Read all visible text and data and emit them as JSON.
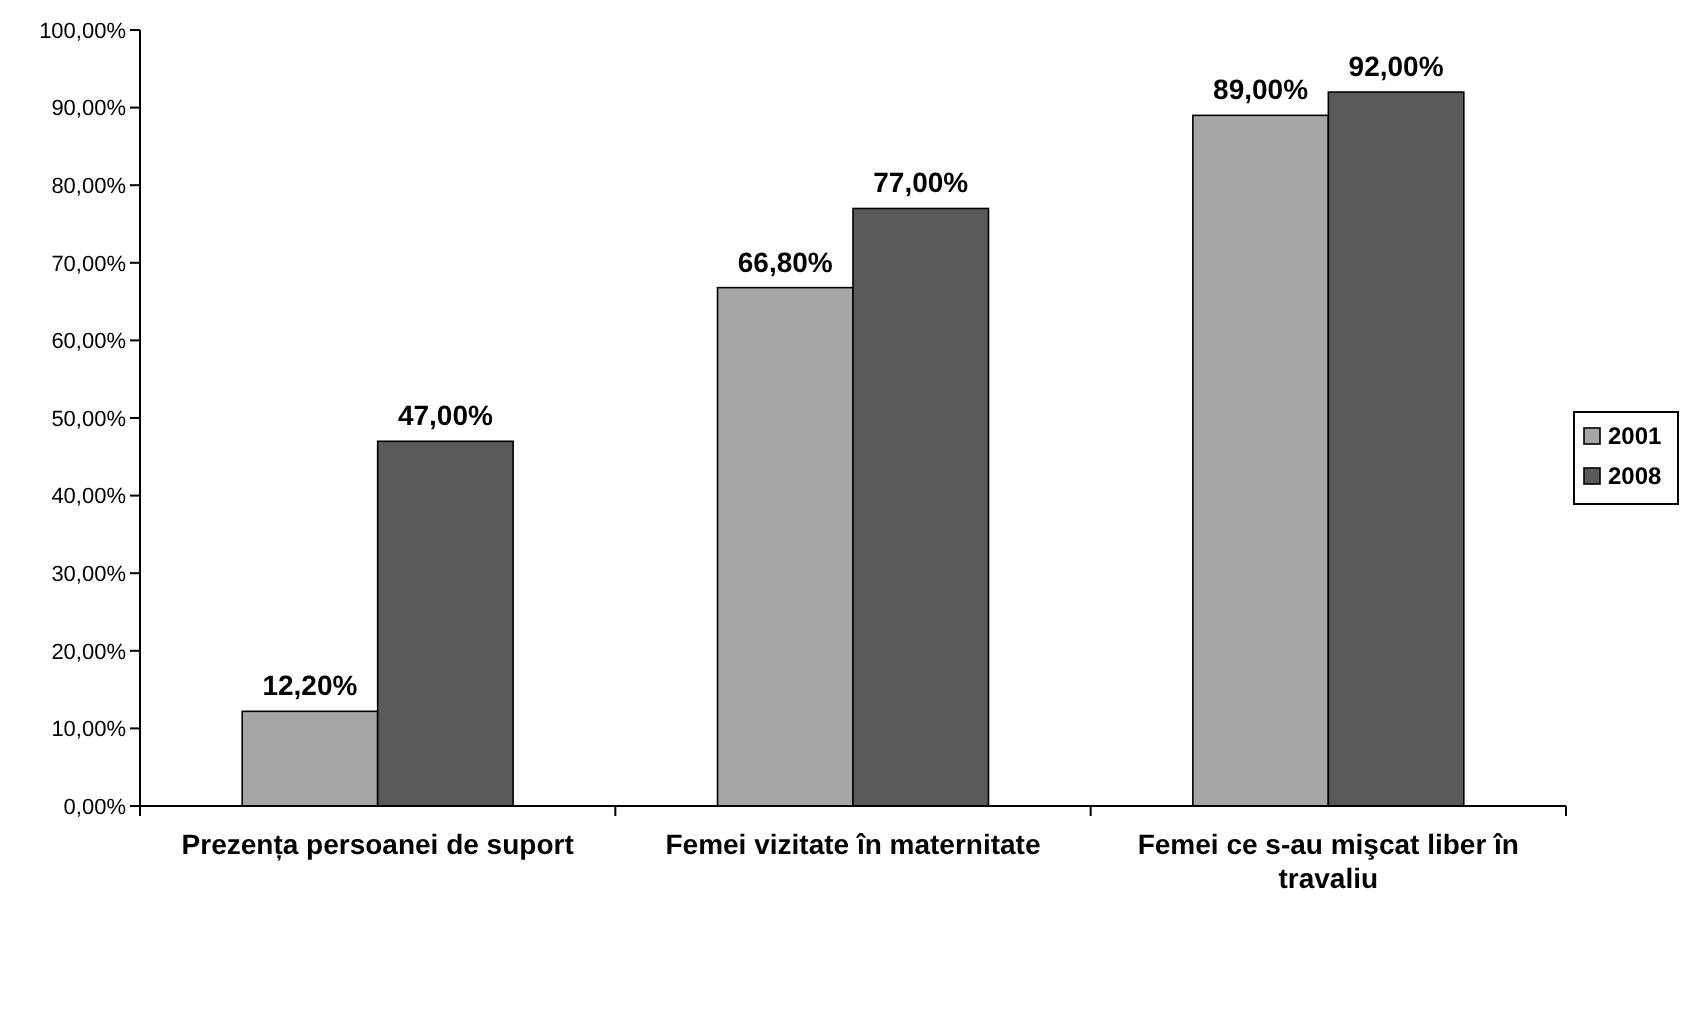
{
  "chart_data": {
    "type": "bar",
    "categories": [
      "Prezența persoanei de suport",
      "Femei vizitate în maternitate",
      "Femei ce s-au mişcat liber în travaliu"
    ],
    "series": [
      {
        "name": "2001",
        "color": "#a6a6a6",
        "values": [
          12.2,
          66.8,
          89
        ],
        "value_labels": [
          "12,20%",
          "66,80%",
          "89,00%"
        ]
      },
      {
        "name": "2008",
        "color": "#595959",
        "values": [
          47,
          77,
          92
        ],
        "value_labels": [
          "47,00%",
          "77,00%",
          "92,00%"
        ]
      }
    ],
    "ylim": [
      0,
      100
    ],
    "yticks": [
      {
        "value": 0,
        "label": "0,00%"
      },
      {
        "value": 10,
        "label": "10,00%"
      },
      {
        "value": 20,
        "label": "20,00%"
      },
      {
        "value": 30,
        "label": "30,00%"
      },
      {
        "value": 40,
        "label": "40,00%"
      },
      {
        "value": 50,
        "label": "50,00%"
      },
      {
        "value": 60,
        "label": "60,00%"
      },
      {
        "value": 70,
        "label": "70,00%"
      },
      {
        "value": 80,
        "label": "80,00%"
      },
      {
        "value": 90,
        "label": "90,00%"
      },
      {
        "value": 100,
        "label": "100,00%"
      }
    ],
    "grid": false,
    "legend": "right"
  }
}
